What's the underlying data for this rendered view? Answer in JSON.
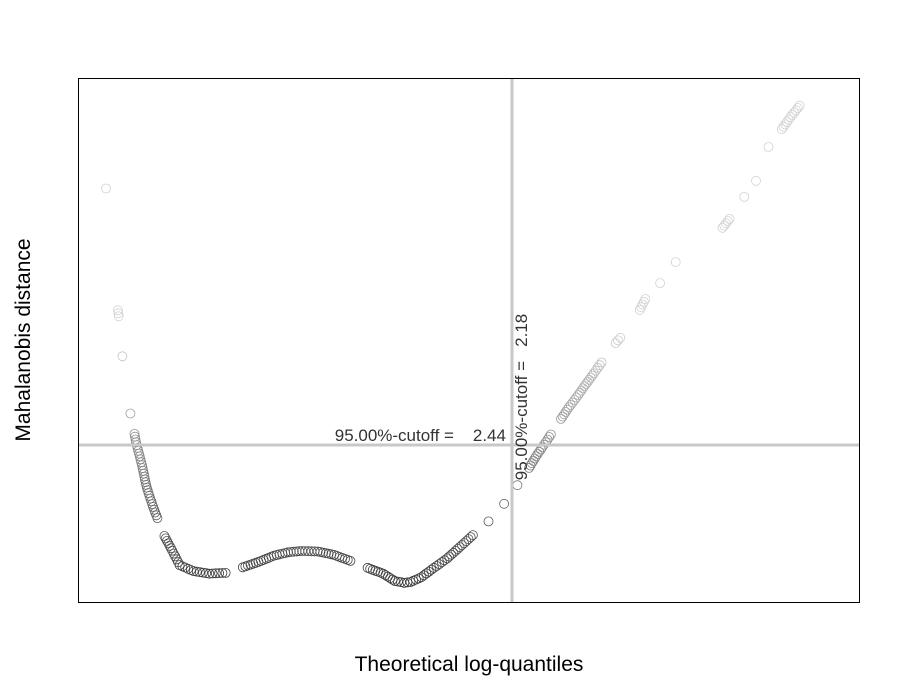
{
  "chart_data": {
    "type": "scatter",
    "title": "",
    "xlabel": "Theoretical log-quantiles",
    "ylabel": "Mahalanobis distance",
    "xlim": [
      0,
      1
    ],
    "ylim": [
      0,
      1
    ],
    "show_ticks": false,
    "grid": false,
    "legend": "none",
    "cutoffs": {
      "horizontal": {
        "label": "95.00%-cutoff =    2.44",
        "value": 0.3003
      },
      "vertical": {
        "label": "95.00%-cutoff =   2.18",
        "value": 0.5551
      }
    },
    "curve_points": [
      [
        0.0346,
        0.7906
      ],
      [
        0.05,
        0.5577
      ],
      [
        0.0509,
        0.5462
      ],
      [
        0.0557,
        0.4698
      ],
      [
        0.0659,
        0.3605
      ],
      [
        0.0711,
        0.3214
      ],
      [
        0.0731,
        0.3054
      ],
      [
        0.0788,
        0.2729
      ],
      [
        0.0808,
        0.2615
      ],
      [
        0.0853,
        0.229
      ],
      [
        0.0879,
        0.2137
      ],
      [
        0.095,
        0.1819
      ],
      [
        0.1005,
        0.1605
      ],
      [
        0.1095,
        0.1262
      ],
      [
        0.1195,
        0.0981
      ],
      [
        0.129,
        0.0706
      ],
      [
        0.147,
        0.0588
      ],
      [
        0.167,
        0.0542
      ],
      [
        0.188,
        0.0557
      ],
      [
        0.21,
        0.0664
      ],
      [
        0.23,
        0.0767
      ],
      [
        0.25,
        0.0885
      ],
      [
        0.268,
        0.0951
      ],
      [
        0.286,
        0.0976
      ],
      [
        0.306,
        0.0966
      ],
      [
        0.327,
        0.0901
      ],
      [
        0.348,
        0.0786
      ],
      [
        0.37,
        0.0653
      ],
      [
        0.39,
        0.0542
      ],
      [
        0.405,
        0.0401
      ],
      [
        0.417,
        0.0366
      ],
      [
        0.425,
        0.0382
      ],
      [
        0.439,
        0.0475
      ],
      [
        0.455,
        0.0653
      ],
      [
        0.472,
        0.0833
      ],
      [
        0.488,
        0.105
      ],
      [
        0.505,
        0.1279
      ],
      [
        0.525,
        0.1542
      ],
      [
        0.545,
        0.1878
      ],
      [
        0.562,
        0.2233
      ],
      [
        0.577,
        0.2565
      ],
      [
        0.586,
        0.2786
      ],
      [
        0.594,
        0.2958
      ],
      [
        0.605,
        0.3203
      ],
      [
        0.618,
        0.3501
      ],
      [
        0.628,
        0.372
      ],
      [
        0.64,
        0.3957
      ],
      [
        0.648,
        0.4128
      ],
      [
        0.656,
        0.429
      ],
      [
        0.66,
        0.4371
      ],
      [
        0.67,
        0.458
      ],
      [
        0.688,
        0.495
      ],
      [
        0.694,
        0.5052
      ],
      [
        0.719,
        0.5584
      ],
      [
        0.726,
        0.5793
      ],
      [
        0.745,
        0.6098
      ],
      [
        0.765,
        0.65
      ],
      [
        0.825,
        0.7155
      ],
      [
        0.834,
        0.7326
      ],
      [
        0.853,
        0.7745
      ],
      [
        0.868,
        0.8054
      ],
      [
        0.884,
        0.8702
      ],
      [
        0.901,
        0.9041
      ],
      [
        0.912,
        0.9269
      ],
      [
        0.924,
        0.9489
      ]
    ]
  }
}
